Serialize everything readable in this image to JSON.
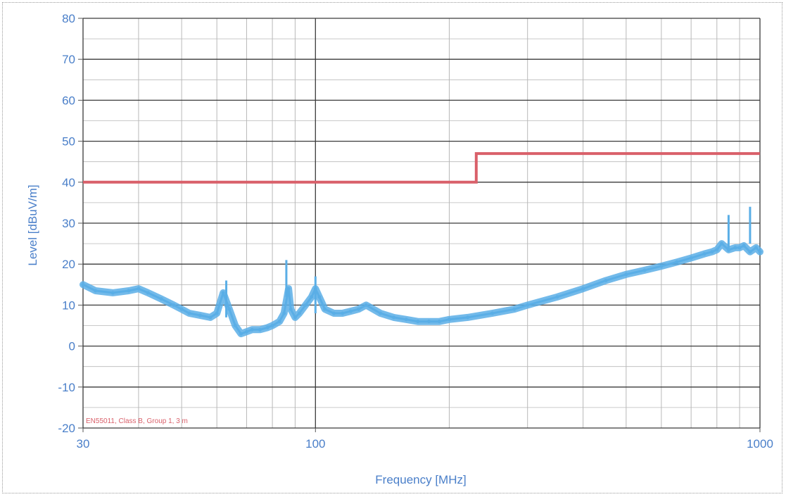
{
  "chart_data": {
    "type": "line",
    "xlabel": "Frequency [MHz]",
    "ylabel": "Level [dBuV/m]",
    "x_scale": "log",
    "xlim": [
      30,
      1000
    ],
    "ylim": [
      -20,
      80
    ],
    "x_ticks": [
      30,
      100,
      1000
    ],
    "y_ticks": [
      -20,
      -10,
      0,
      10,
      20,
      30,
      40,
      50,
      60,
      70,
      80
    ],
    "grid": true,
    "annotation": "EN55011, Class B, Group 1, 3 m",
    "colors": {
      "limit": "#d9606a",
      "measurement": "#5aaee6",
      "axis_text": "#4a7fc9",
      "grid_major": "#3a3a3a",
      "grid_minor": "#b8b8b8"
    },
    "series": [
      {
        "role": "limit",
        "x": [
          30,
          230,
          230,
          1000
        ],
        "y": [
          40,
          40,
          47,
          47
        ]
      },
      {
        "role": "measurement",
        "x": [
          30,
          32,
          35,
          38,
          40,
          42,
          45,
          48,
          50,
          52,
          55,
          58,
          60,
          62,
          64,
          66,
          68,
          70,
          72,
          75,
          78,
          80,
          83,
          85,
          87,
          88,
          90,
          92,
          95,
          98,
          100,
          102,
          105,
          110,
          115,
          120,
          125,
          130,
          140,
          150,
          160,
          170,
          180,
          190,
          200,
          220,
          250,
          280,
          300,
          350,
          400,
          450,
          500,
          550,
          600,
          650,
          700,
          750,
          780,
          800,
          820,
          850,
          880,
          900,
          920,
          950,
          980,
          1000
        ],
        "y": [
          15,
          13.5,
          13,
          13.5,
          14,
          13,
          11.5,
          10,
          9,
          8,
          7.5,
          7,
          8,
          13,
          9,
          5,
          3,
          3.5,
          4,
          4,
          4.5,
          5,
          6,
          8,
          14,
          9,
          7,
          8,
          10,
          12,
          14,
          12,
          9,
          8,
          8,
          8.5,
          9,
          10,
          8,
          7,
          6.5,
          6,
          6,
          6,
          6.5,
          7,
          8,
          9,
          10,
          12,
          14,
          16,
          17.5,
          18.5,
          19.5,
          20.5,
          21.5,
          22.5,
          23,
          23.5,
          25,
          23.5,
          24,
          24,
          24.5,
          23,
          24,
          23
        ]
      }
    ],
    "peaks": [
      {
        "x": 63,
        "y": 16
      },
      {
        "x": 86,
        "y": 21
      },
      {
        "x": 100,
        "y": 17
      },
      {
        "x": 850,
        "y": 32
      },
      {
        "x": 950,
        "y": 34
      }
    ]
  }
}
